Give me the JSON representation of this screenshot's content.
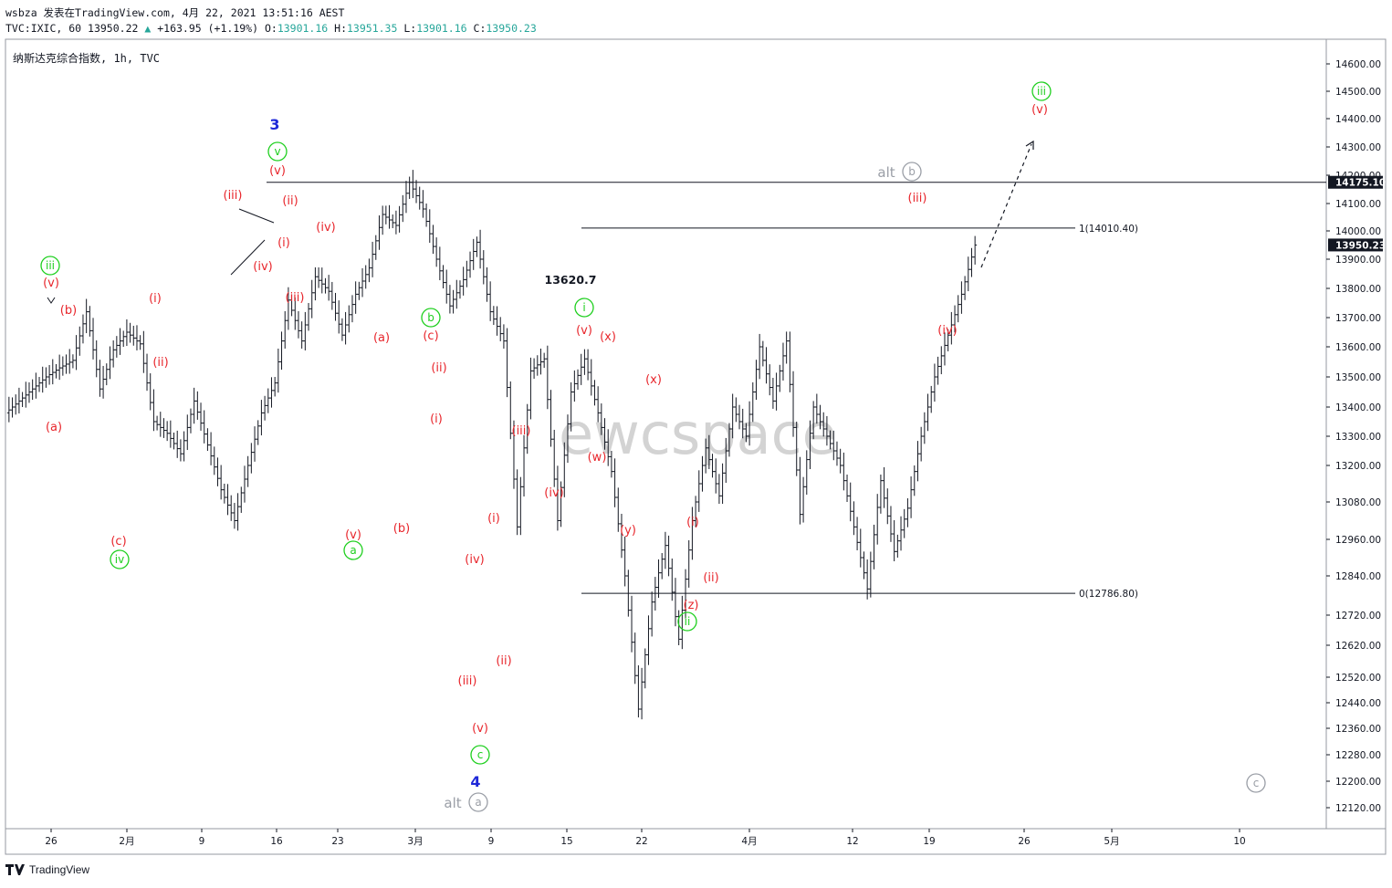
{
  "header": {
    "line1": "wsbza 发表在TradingView.com, 4月 22, 2021 13:51:16 AEST",
    "symbol": "TVC:IXIC, 60",
    "last": "13950.22",
    "change": "+163.95 (+1.19%)",
    "o_label": "O:",
    "o": "13901.16",
    "h_label": "H:",
    "h": "13951.35",
    "l_label": "L:",
    "l": "13901.16",
    "c_label": "C:",
    "c": "13950.23"
  },
  "chart_title": "纳斯达克综合指数, 1h, TVC",
  "watermark": "ewcspace",
  "footer": {
    "brand": "TradingView"
  },
  "colors": {
    "wave_red": "#e8262c",
    "wave_green": "#1ecf1e",
    "wave_blue": "#1e28d8",
    "alt_gray": "#9a9ea6",
    "candle": "#131722"
  },
  "chart_data": {
    "type": "line",
    "title": "纳斯达克综合指数, 1h, TVC",
    "x_ticks": [
      "26",
      "2月",
      "9",
      "16",
      "23",
      "3月",
      "9",
      "15",
      "22",
      "4月",
      "12",
      "19",
      "26",
      "5月",
      "10"
    ],
    "y_ticks": [
      12120,
      12200,
      12280,
      12360,
      12440,
      12520,
      12620,
      12720,
      12840,
      12960,
      13080,
      13200,
      13300,
      13400,
      13500,
      13600,
      13700,
      13800,
      13900,
      14000,
      14100,
      14200,
      14300,
      14400,
      14500,
      14600
    ],
    "y_tick_labels": [
      "12120.00",
      "12200.00",
      "12280.00",
      "12360.00",
      "12440.00",
      "12520.00",
      "12620.00",
      "12720.00",
      "12840.00",
      "12960.00",
      "13080.00",
      "13200.00",
      "13300.00",
      "13400.00",
      "13500.00",
      "13600.00",
      "13700.00",
      "13800.00",
      "13900.00",
      "14000.00",
      "14100.00",
      "14200.00",
      "14300.00",
      "14400.00",
      "14500.00",
      "14600.00"
    ],
    "ylim": [
      12060,
      14680
    ],
    "price_tags": [
      {
        "label": "14175.10",
        "value": 14175.1
      },
      {
        "label": "13950.23",
        "value": 13950.23
      }
    ],
    "horizontal_lines": [
      {
        "value": 14175.1,
        "label": ""
      },
      {
        "value": 14010.4,
        "label": "1(14010.40)"
      },
      {
        "value": 12786.8,
        "label": "0(12786.80)"
      }
    ],
    "price_annotation": "13620.7",
    "series": [
      {
        "x": [
          0,
          2,
          4,
          6,
          8,
          10,
          12,
          14,
          16,
          18,
          20,
          22,
          24,
          26,
          28,
          30,
          32,
          34,
          36,
          38,
          40,
          42,
          44,
          46,
          48,
          50,
          52,
          54,
          56,
          58,
          60,
          62,
          64,
          66,
          68,
          70,
          72,
          74,
          76,
          78,
          80,
          82,
          84,
          86,
          88,
          90,
          92,
          94,
          96,
          98,
          100,
          102,
          104,
          106,
          108,
          110,
          112,
          114,
          116,
          118,
          120,
          122,
          124,
          126,
          128,
          130,
          132,
          134,
          136,
          138,
          140,
          142,
          144
        ],
        "values": [
          13380,
          13420,
          13460,
          13500,
          13530,
          13555,
          13720,
          13460,
          13590,
          13650,
          13610,
          13350,
          13310,
          13240,
          13420,
          13270,
          13120,
          13020,
          13200,
          13380,
          13480,
          13760,
          13620,
          13840,
          13790,
          13640,
          13780,
          13870,
          14060,
          14020,
          14175,
          14080,
          13900,
          13740,
          13830,
          13960,
          13720,
          13620,
          13000,
          13520,
          13560,
          13020,
          13450,
          13560,
          13380,
          13180,
          12840,
          12420,
          12760,
          12940,
          12640,
          13020,
          13260,
          13100,
          13400,
          13300,
          13600,
          13420,
          13620,
          13040,
          13400,
          13300,
          13200,
          13000,
          12800,
          13150,
          12920,
          13060,
          13300,
          13500,
          13640,
          13780,
          13950
        ]
      }
    ],
    "wave_labels": [
      {
        "text": "3",
        "color": "blue"
      },
      {
        "text": "4",
        "color": "blue"
      },
      {
        "text": "iii",
        "color": "green",
        "circled": true
      },
      {
        "text": "iv",
        "color": "green",
        "circled": true
      },
      {
        "text": "v",
        "color": "green",
        "circled": true
      },
      {
        "text": "a",
        "color": "green",
        "circled": true
      },
      {
        "text": "b",
        "color": "green",
        "circled": true
      },
      {
        "text": "c",
        "color": "green",
        "circled": true
      },
      {
        "text": "i",
        "color": "green",
        "circled": true
      },
      {
        "text": "ii",
        "color": "green",
        "circled": true
      },
      {
        "text": "iii",
        "color": "green",
        "circled": true
      },
      {
        "text": "alt",
        "color": "gray"
      },
      {
        "text": "a",
        "color": "gray",
        "circled": true
      },
      {
        "text": "b",
        "color": "gray",
        "circled": true
      },
      {
        "text": "c",
        "color": "gray",
        "circled": true
      },
      {
        "text": "(a)",
        "color": "red"
      },
      {
        "text": "(b)",
        "color": "red"
      },
      {
        "text": "(c)",
        "color": "red"
      },
      {
        "text": "(i)",
        "color": "red"
      },
      {
        "text": "(ii)",
        "color": "red"
      },
      {
        "text": "(iii)",
        "color": "red"
      },
      {
        "text": "(iv)",
        "color": "red"
      },
      {
        "text": "(v)",
        "color": "red"
      },
      {
        "text": "(w)",
        "color": "red"
      },
      {
        "text": "(x)",
        "color": "red"
      },
      {
        "text": "(y)",
        "color": "red"
      },
      {
        "text": "(z)",
        "color": "red"
      }
    ]
  }
}
